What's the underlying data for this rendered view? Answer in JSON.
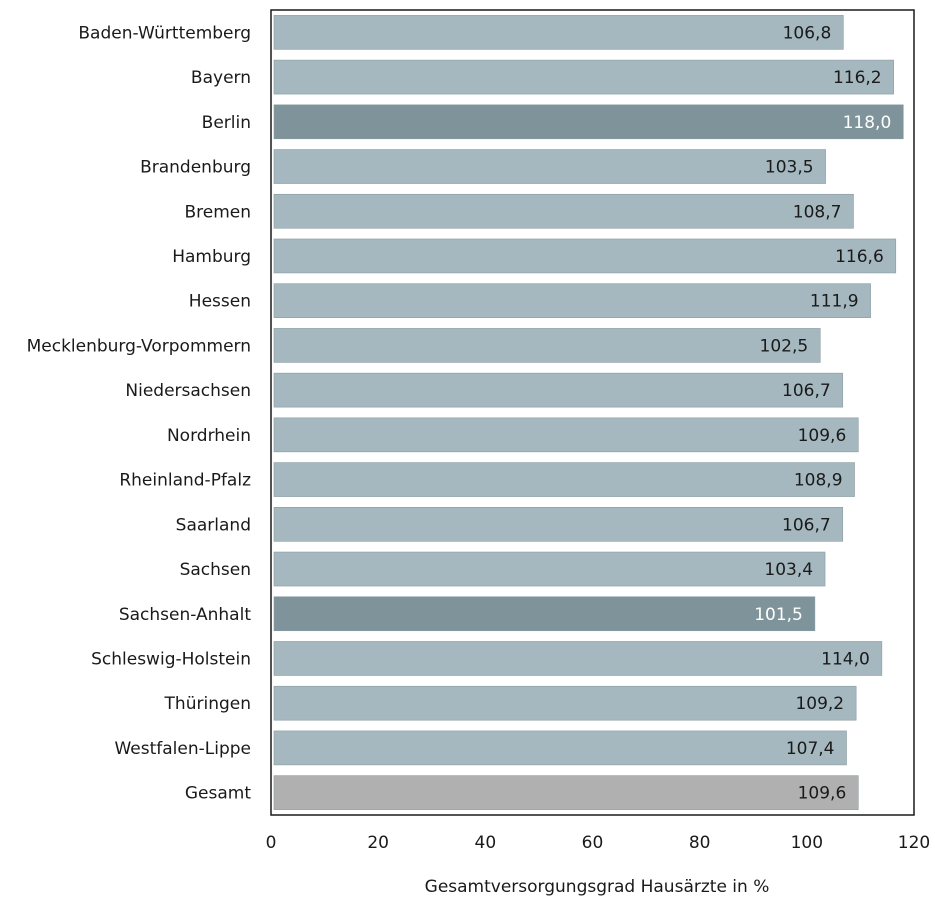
{
  "chart_data": {
    "type": "bar",
    "orientation": "horizontal",
    "xlabel": "Gesamtversorgungsgrad Hausärzte in %",
    "ylabel": "",
    "xlim": [
      0,
      120
    ],
    "xticks": [
      "0",
      "20",
      "40",
      "60",
      "80",
      "100",
      "120"
    ],
    "xtick_values": [
      0,
      20,
      40,
      60,
      80,
      100,
      120
    ],
    "grid": false,
    "colors": {
      "default": "#a5b8bf",
      "highlight": "#7f939b",
      "total": "#b0b0b0",
      "label_dark": "#1a1a1a",
      "label_light": "#ffffff"
    },
    "bars": [
      {
        "category": "Baden-Württemberg",
        "value": 106.8,
        "label": "106,8",
        "style": "default"
      },
      {
        "category": "Bayern",
        "value": 116.2,
        "label": "116,2",
        "style": "default"
      },
      {
        "category": "Berlin",
        "value": 118.0,
        "label": "118,0",
        "style": "highlight"
      },
      {
        "category": "Brandenburg",
        "value": 103.5,
        "label": "103,5",
        "style": "default"
      },
      {
        "category": "Bremen",
        "value": 108.7,
        "label": "108,7",
        "style": "default"
      },
      {
        "category": "Hamburg",
        "value": 116.6,
        "label": "116,6",
        "style": "default"
      },
      {
        "category": "Hessen",
        "value": 111.9,
        "label": "111,9",
        "style": "default"
      },
      {
        "category": "Mecklenburg-Vorpommern",
        "value": 102.5,
        "label": "102,5",
        "style": "default"
      },
      {
        "category": "Niedersachsen",
        "value": 106.7,
        "label": "106,7",
        "style": "default"
      },
      {
        "category": "Nordrhein",
        "value": 109.6,
        "label": "109,6",
        "style": "default"
      },
      {
        "category": "Rheinland-Pfalz",
        "value": 108.9,
        "label": "108,9",
        "style": "default"
      },
      {
        "category": "Saarland",
        "value": 106.7,
        "label": "106,7",
        "style": "default"
      },
      {
        "category": "Sachsen",
        "value": 103.4,
        "label": "103,4",
        "style": "default"
      },
      {
        "category": "Sachsen-Anhalt",
        "value": 101.5,
        "label": "101,5",
        "style": "highlight"
      },
      {
        "category": "Schleswig-Holstein",
        "value": 114.0,
        "label": "114,0",
        "style": "default"
      },
      {
        "category": "Thüringen",
        "value": 109.2,
        "label": "109,2",
        "style": "default"
      },
      {
        "category": "Westfalen-Lippe",
        "value": 107.4,
        "label": "107,4",
        "style": "default"
      },
      {
        "category": "Gesamt",
        "value": 109.6,
        "label": "109,6",
        "style": "total"
      }
    ]
  }
}
